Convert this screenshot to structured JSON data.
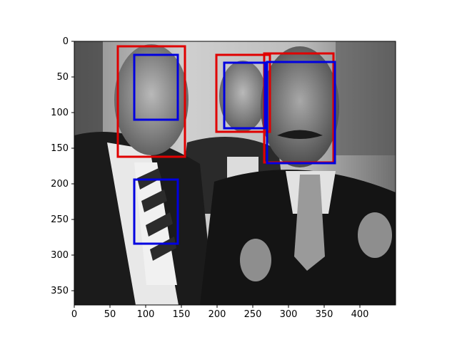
{
  "figure": {
    "background": "#ffffff"
  },
  "image": {
    "description_tone": "grayscale photograph",
    "subject_colors": {
      "background_light": "#d9d9d9",
      "suit_dark": "#1f1f1f",
      "skin": "#9a9a9a",
      "shirt": "#e6e6e6"
    }
  },
  "axes": {
    "xlim": [
      0,
      450
    ],
    "ylim": [
      370,
      0
    ],
    "xticks": [
      0,
      50,
      100,
      150,
      200,
      250,
      300,
      350,
      400
    ],
    "yticks": [
      0,
      50,
      100,
      150,
      200,
      250,
      300,
      350
    ],
    "xtick_labels": [
      "0",
      "50",
      "100",
      "150",
      "200",
      "250",
      "300",
      "350",
      "400"
    ],
    "ytick_labels": [
      "0",
      "50",
      "100",
      "150",
      "200",
      "250",
      "300",
      "350"
    ]
  },
  "chart_data": {
    "type": "image-with-boxes",
    "image_size": [
      450,
      370
    ],
    "boxes": [
      {
        "color": "red",
        "x0": 61,
        "y0": 7,
        "x1": 155,
        "y1": 162
      },
      {
        "color": "red",
        "x0": 199,
        "y0": 19,
        "x1": 274,
        "y1": 127
      },
      {
        "color": "red",
        "x0": 266,
        "y0": 17,
        "x1": 363,
        "y1": 170
      },
      {
        "color": "blue",
        "x0": 84,
        "y0": 19,
        "x1": 145,
        "y1": 110
      },
      {
        "color": "blue",
        "x0": 210,
        "y0": 30,
        "x1": 267,
        "y1": 122
      },
      {
        "color": "blue",
        "x0": 270,
        "y0": 29,
        "x1": 365,
        "y1": 171
      },
      {
        "color": "blue",
        "x0": 84,
        "y0": 194,
        "x1": 145,
        "y1": 284
      }
    ],
    "box_colors": {
      "red": "#e00000",
      "blue": "#0000e0"
    }
  }
}
